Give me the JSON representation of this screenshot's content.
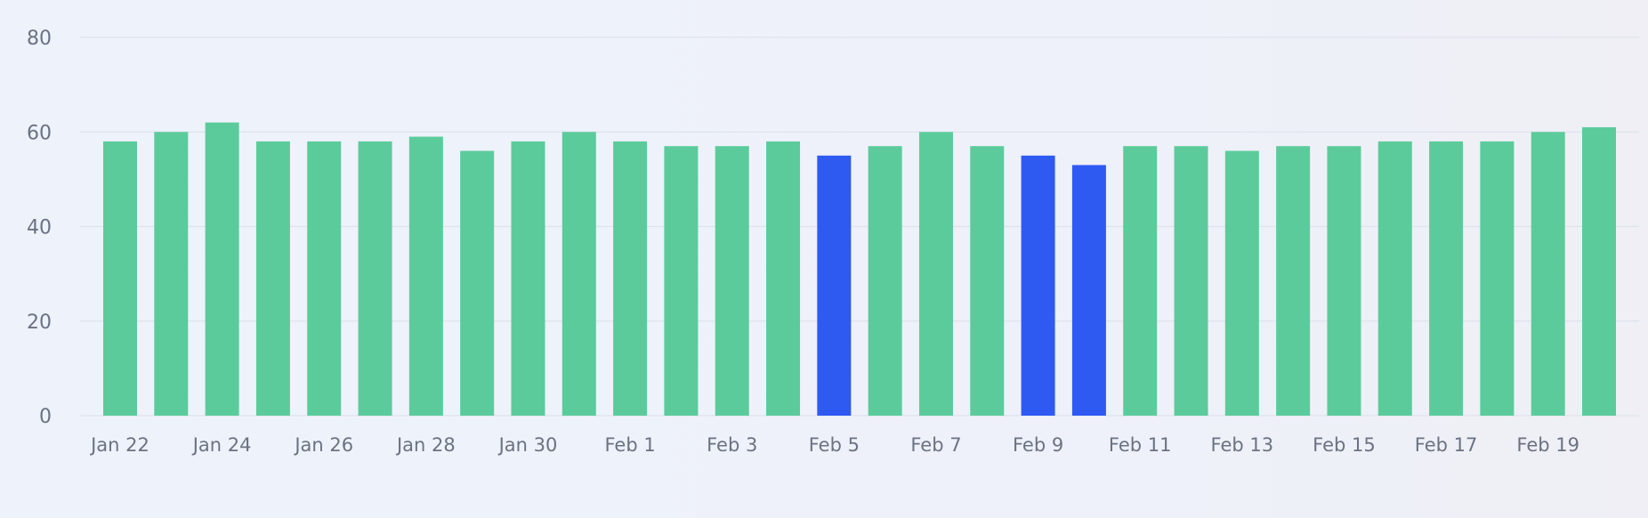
{
  "chart_data": {
    "type": "bar",
    "title": "",
    "xlabel": "",
    "ylabel": "",
    "ylim": [
      0,
      80
    ],
    "y_ticks": [
      "0",
      "20",
      "40",
      "60",
      "80"
    ],
    "grid": true,
    "colors": {
      "default": "#5ccb9b",
      "highlight": "#2e5af2",
      "grid": "#dfe3ec",
      "tick_text": "#6b7282"
    },
    "categories": [
      "Jan 22",
      "Jan 23",
      "Jan 24",
      "Jan 25",
      "Jan 26",
      "Jan 27",
      "Jan 28",
      "Jan 29",
      "Jan 30",
      "Jan 31",
      "Feb 1",
      "Feb 2",
      "Feb 3",
      "Feb 4",
      "Feb 5",
      "Feb 6",
      "Feb 7",
      "Feb 8",
      "Feb 9",
      "Feb 10",
      "Feb 11",
      "Feb 12",
      "Feb 13",
      "Feb 14",
      "Feb 15",
      "Feb 16",
      "Feb 17",
      "Feb 18",
      "Feb 19",
      "Feb 20"
    ],
    "x_tick_labels": [
      "Jan 22",
      "Jan 24",
      "Jan 26",
      "Jan 28",
      "Jan 30",
      "Feb 1",
      "Feb 3",
      "Feb 5",
      "Feb 7",
      "Feb 9",
      "Feb 11",
      "Feb 13",
      "Feb 15",
      "Feb 17",
      "Feb 19"
    ],
    "values": [
      58,
      60,
      62,
      58,
      58,
      58,
      59,
      56,
      58,
      60,
      58,
      57,
      57,
      58,
      55,
      57,
      60,
      57,
      55,
      53,
      57,
      57,
      56,
      57,
      57,
      58,
      58,
      58,
      60,
      61
    ],
    "highlighted": [
      false,
      false,
      false,
      false,
      false,
      false,
      false,
      false,
      false,
      false,
      false,
      false,
      false,
      false,
      true,
      false,
      false,
      false,
      true,
      true,
      false,
      false,
      false,
      false,
      false,
      false,
      false,
      false,
      false,
      false
    ]
  }
}
